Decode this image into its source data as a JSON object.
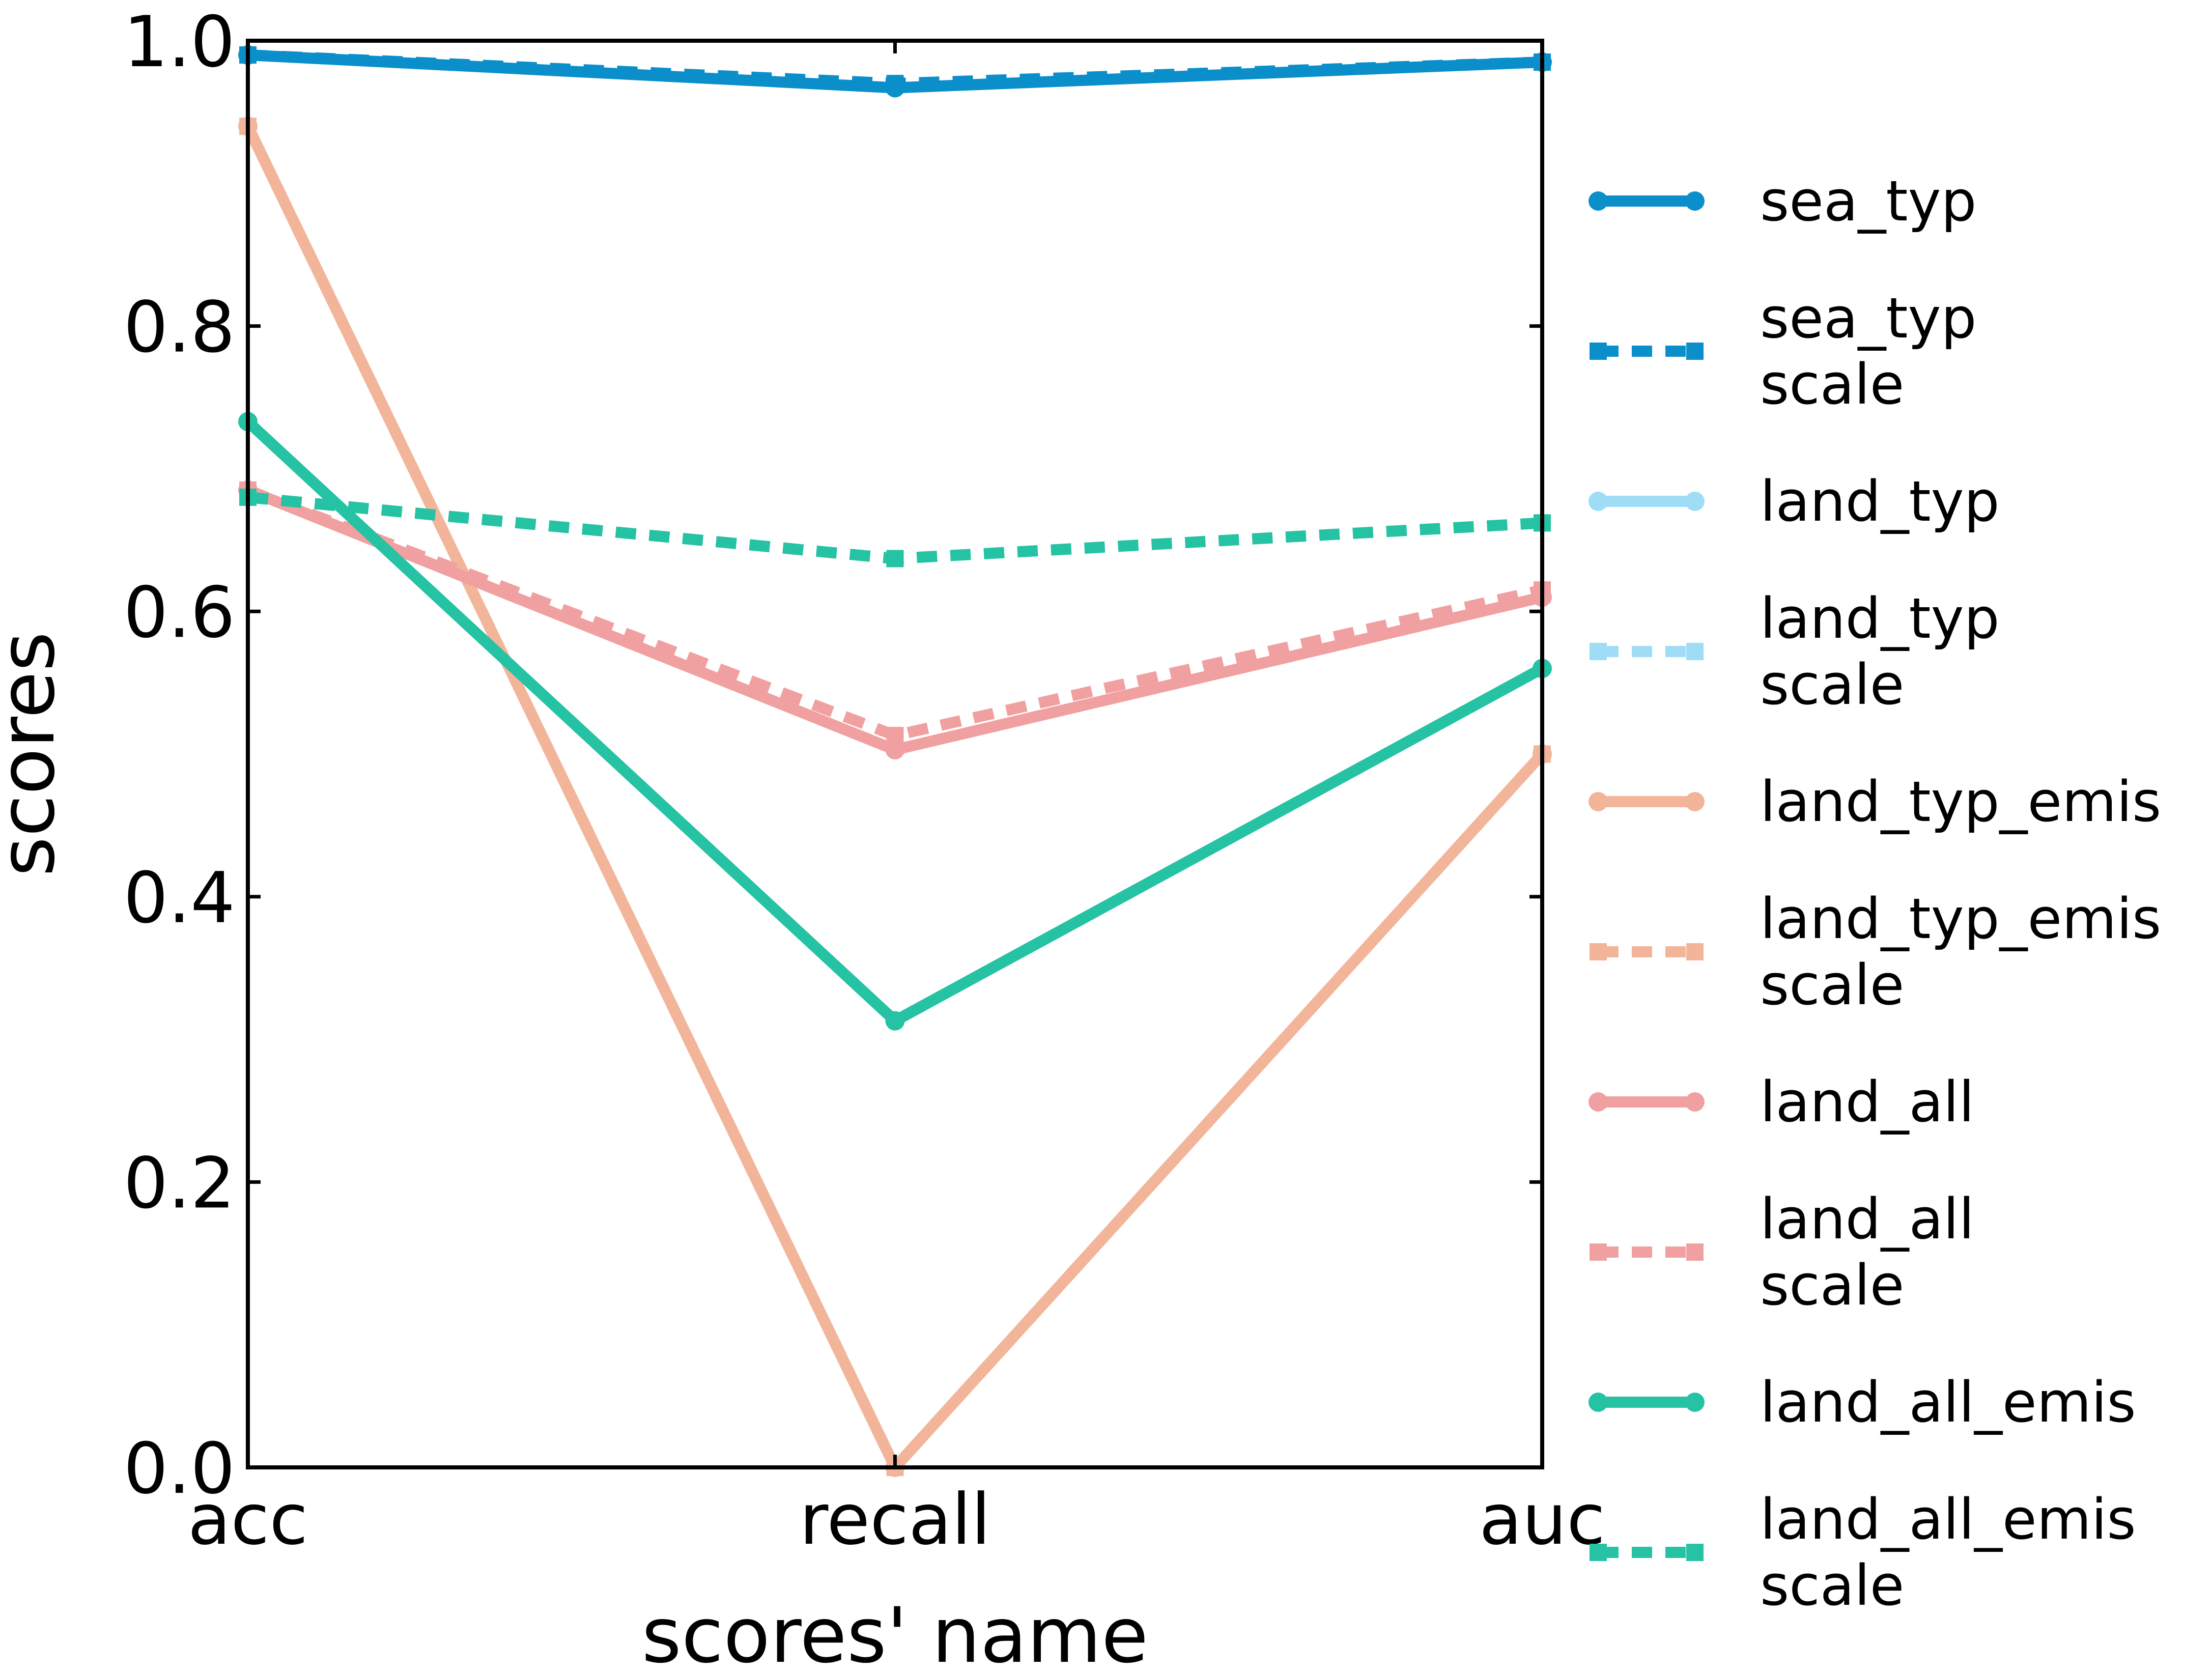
{
  "chart_data": {
    "type": "line",
    "title": "",
    "xlabel": "scores' name",
    "ylabel": "scores",
    "categories": [
      "acc",
      "recall",
      "auc"
    ],
    "ylim": [
      0.0,
      1.0
    ],
    "yticks": [
      "0.0",
      "0.2",
      "0.4",
      "0.6",
      "0.8",
      "1.0"
    ],
    "grid": false,
    "legend_position": "right, outside plot",
    "series": [
      {
        "name": "sea_typ",
        "lines": [
          "sea_typ"
        ],
        "values": [
          0.99,
          0.967,
          0.985
        ],
        "color": "#0a8fcb",
        "style": "solid",
        "marker": "circle"
      },
      {
        "name": "sea_typ scale",
        "lines": [
          "sea_typ",
          "scale"
        ],
        "values": [
          0.99,
          0.97,
          0.985
        ],
        "color": "#0a8fcb",
        "style": "dashed",
        "marker": "square"
      },
      {
        "name": "land_typ",
        "lines": [
          "land_typ"
        ],
        "values": [
          null,
          null,
          null
        ],
        "color": "#9fdcf5",
        "style": "solid",
        "marker": "circle"
      },
      {
        "name": "land_typ scale",
        "lines": [
          "land_typ",
          "scale"
        ],
        "values": [
          null,
          null,
          null
        ],
        "color": "#9fdcf5",
        "style": "dashed",
        "marker": "square"
      },
      {
        "name": "land_typ_emis",
        "lines": [
          "land_typ_emis"
        ],
        "values": [
          0.94,
          0.0,
          0.5
        ],
        "color": "#f2b59a",
        "style": "solid",
        "marker": "circle"
      },
      {
        "name": "land_typ_emis scale",
        "lines": [
          "land_typ_emis",
          "scale"
        ],
        "values": [
          0.94,
          0.0,
          0.5
        ],
        "color": "#f2b59a",
        "style": "dashed",
        "marker": "square"
      },
      {
        "name": "land_all",
        "lines": [
          "land_all"
        ],
        "values": [
          0.685,
          0.503,
          0.61
        ],
        "color": "#f0a0a0",
        "style": "solid",
        "marker": "circle"
      },
      {
        "name": "land_all scale",
        "lines": [
          "land_all",
          "scale"
        ],
        "values": [
          0.685,
          0.513,
          0.615
        ],
        "color": "#f0a0a0",
        "style": "dashed",
        "marker": "square"
      },
      {
        "name": "land_all_emis",
        "lines": [
          "land_all_emis"
        ],
        "values": [
          0.733,
          0.313,
          0.56
        ],
        "color": "#25c2a4",
        "style": "solid",
        "marker": "circle"
      },
      {
        "name": "land_all_emis scale",
        "lines": [
          "land_all_emis",
          "scale"
        ],
        "values": [
          0.68,
          0.637,
          0.662
        ],
        "color": "#25c2a4",
        "style": "dashed",
        "marker": "square"
      }
    ]
  }
}
